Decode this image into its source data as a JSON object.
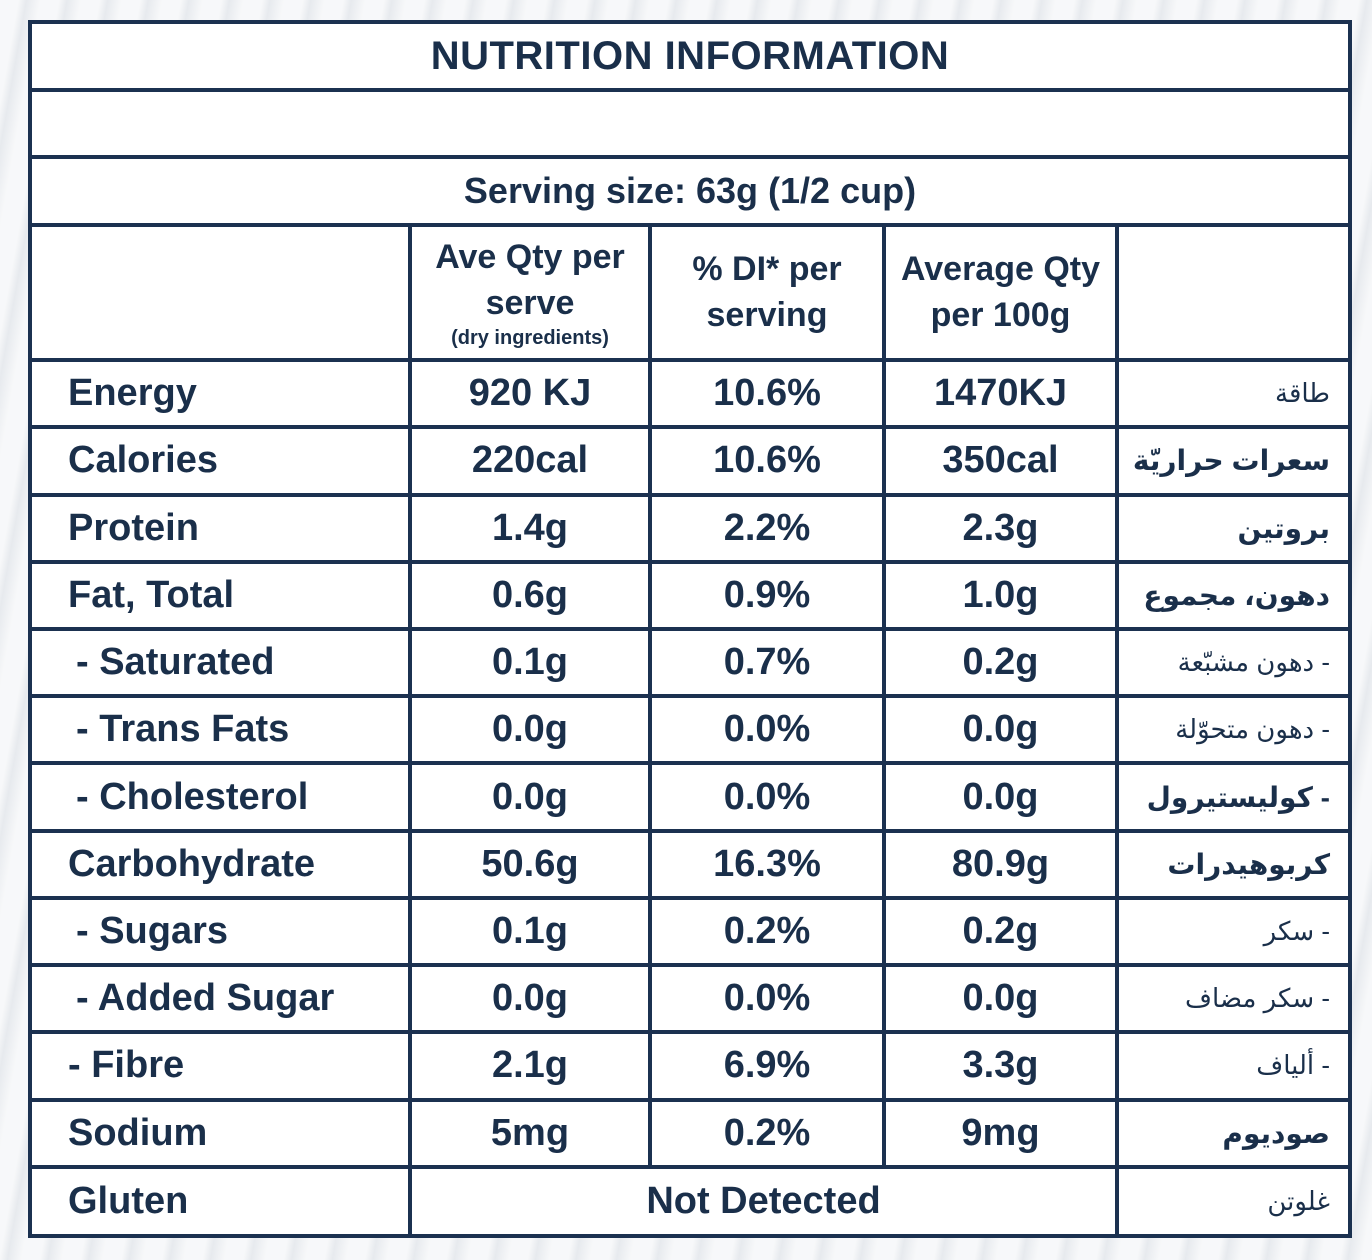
{
  "title": "NUTRITION INFORMATION",
  "serving_size": "Serving size: 63g (1/2 cup)",
  "headers": {
    "col1": "Ave Qty per serve",
    "col1_sub": "(dry ingredients)",
    "col2": "% DI* per serving",
    "col3": "Average Qty per 100g"
  },
  "rows": [
    {
      "name": "Energy",
      "serve": "920 KJ",
      "di": "10.6%",
      "per100": "1470KJ",
      "arabic": "طاقة"
    },
    {
      "name": "Calories",
      "serve": "220cal",
      "di": "10.6%",
      "per100": "350cal",
      "arabic": "سعرات حراريّة"
    },
    {
      "name": "Protein",
      "serve": "1.4g",
      "di": "2.2%",
      "per100": "2.3g",
      "arabic": "بروتين"
    },
    {
      "name": "Fat, Total",
      "serve": "0.6g",
      "di": "0.9%",
      "per100": "1.0g",
      "arabic": "دهون، مجموع"
    },
    {
      "name": "- Saturated",
      "serve": "0.1g",
      "di": "0.7%",
      "per100": "0.2g",
      "arabic": "- دهون مشبّعة"
    },
    {
      "name": "- Trans Fats",
      "serve": "0.0g",
      "di": "0.0%",
      "per100": "0.0g",
      "arabic": "- دهون متحوّلة"
    },
    {
      "name": "- Cholesterol",
      "serve": "0.0g",
      "di": "0.0%",
      "per100": "0.0g",
      "arabic": "- كوليستيرول"
    },
    {
      "name": "Carbohydrate",
      "serve": "50.6g",
      "di": "16.3%",
      "per100": "80.9g",
      "arabic": "كربوهيدرات"
    },
    {
      "name": "- Sugars",
      "serve": "0.1g",
      "di": "0.2%",
      "per100": "0.2g",
      "arabic": "- سكر"
    },
    {
      "name": "- Added Sugar",
      "serve": "0.0g",
      "di": "0.0%",
      "per100": "0.0g",
      "arabic": "- سكر مضاف"
    },
    {
      "name": "- Fibre",
      "serve": "2.1g",
      "di": "6.9%",
      "per100": "3.3g",
      "arabic": "- ألياف"
    },
    {
      "name": "Sodium",
      "serve": "5mg",
      "di": "0.2%",
      "per100": "9mg",
      "arabic": "صوديوم"
    }
  ],
  "gluten": {
    "name": "Gluten",
    "value": "Not Detected",
    "arabic": "غلوتن"
  }
}
